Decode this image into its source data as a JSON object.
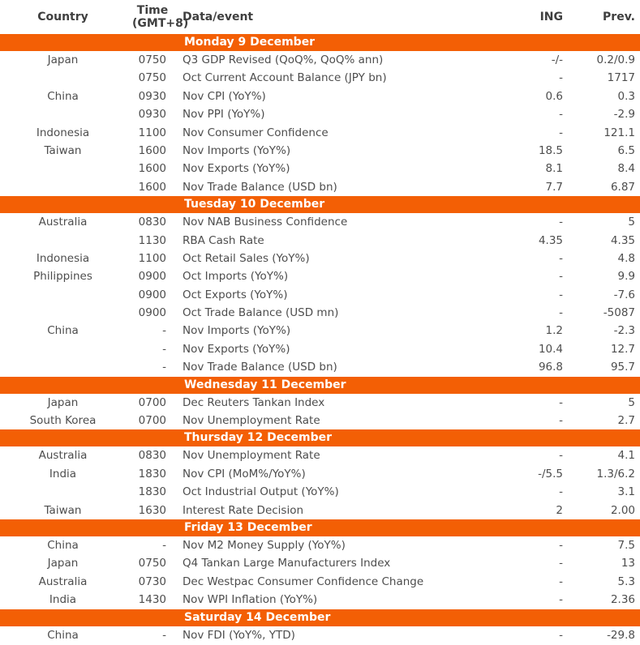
{
  "colors": {
    "accent_orange": "#f35f05",
    "band_text": "#ffffff",
    "body_text": "#4d4d4d"
  },
  "header": {
    "country": "Country",
    "time_line1": "Time",
    "time_line2": "(GMT+8)",
    "event": "Data/event",
    "ing": "ING",
    "prev": "Prev."
  },
  "sections": [
    {
      "day": "Monday 9 December",
      "rows": [
        {
          "country": "Japan",
          "time": "0750",
          "event": "Q3 GDP Revised (QoQ%, QoQ% ann)",
          "ing": "-/-",
          "prev": "0.2/0.9"
        },
        {
          "country": "",
          "time": "0750",
          "event": "Oct Current Account Balance (JPY bn)",
          "ing": "-",
          "prev": "1717"
        },
        {
          "country": "China",
          "time": "0930",
          "event": "Nov CPI (YoY%)",
          "ing": "0.6",
          "prev": "0.3"
        },
        {
          "country": "",
          "time": "0930",
          "event": "Nov PPI (YoY%)",
          "ing": "-",
          "prev": "-2.9"
        },
        {
          "country": "Indonesia",
          "time": "1100",
          "event": "Nov Consumer Confidence",
          "ing": "-",
          "prev": "121.1"
        },
        {
          "country": "Taiwan",
          "time": "1600",
          "event": "Nov Imports (YoY%)",
          "ing": "18.5",
          "prev": "6.5"
        },
        {
          "country": "",
          "time": "1600",
          "event": "Nov Exports (YoY%)",
          "ing": "8.1",
          "prev": "8.4"
        },
        {
          "country": "",
          "time": "1600",
          "event": "Nov Trade Balance (USD bn)",
          "ing": "7.7",
          "prev": "6.87"
        }
      ]
    },
    {
      "day": "Tuesday 10 December",
      "rows": [
        {
          "country": "Australia",
          "time": "0830",
          "event": "Nov NAB Business Confidence",
          "ing": "-",
          "prev": "5"
        },
        {
          "country": "",
          "time": "1130",
          "event": "RBA Cash Rate",
          "ing": "4.35",
          "prev": "4.35"
        },
        {
          "country": "Indonesia",
          "time": "1100",
          "event": "Oct Retail Sales (YoY%)",
          "ing": "-",
          "prev": "4.8"
        },
        {
          "country": "Philippines",
          "time": "0900",
          "event": "Oct Imports (YoY%)",
          "ing": "-",
          "prev": "9.9"
        },
        {
          "country": "",
          "time": "0900",
          "event": "Oct Exports (YoY%)",
          "ing": "-",
          "prev": "-7.6"
        },
        {
          "country": "",
          "time": "0900",
          "event": "Oct Trade Balance (USD mn)",
          "ing": "-",
          "prev": "-5087"
        },
        {
          "country": "China",
          "time": "-",
          "event": "Nov Imports (YoY%)",
          "ing": "1.2",
          "prev": "-2.3"
        },
        {
          "country": "",
          "time": "-",
          "event": "Nov Exports (YoY%)",
          "ing": "10.4",
          "prev": "12.7"
        },
        {
          "country": "",
          "time": "-",
          "event": "Nov Trade Balance (USD bn)",
          "ing": "96.8",
          "prev": "95.7"
        }
      ]
    },
    {
      "day": "Wednesday 11 December",
      "rows": [
        {
          "country": "Japan",
          "time": "0700",
          "event": "Dec Reuters Tankan Index",
          "ing": "-",
          "prev": "5"
        },
        {
          "country": "South Korea",
          "time": "0700",
          "event": "Nov Unemployment Rate",
          "ing": "-",
          "prev": "2.7"
        }
      ]
    },
    {
      "day": "Thursday 12 December",
      "rows": [
        {
          "country": "Australia",
          "time": "0830",
          "event": "Nov Unemployment Rate",
          "ing": "-",
          "prev": "4.1"
        },
        {
          "country": "India",
          "time": "1830",
          "event": "Nov CPI (MoM%/YoY%)",
          "ing": "-/5.5",
          "prev": "1.3/6.2"
        },
        {
          "country": "",
          "time": "1830",
          "event": "Oct Industrial Output (YoY%)",
          "ing": "-",
          "prev": "3.1"
        },
        {
          "country": "Taiwan",
          "time": "1630",
          "event": "Interest Rate Decision",
          "ing": "2",
          "prev": "2.00"
        }
      ]
    },
    {
      "day": "Friday 13 December",
      "rows": [
        {
          "country": "China",
          "time": "-",
          "event": "Nov M2 Money Supply (YoY%)",
          "ing": "-",
          "prev": "7.5"
        },
        {
          "country": "Japan",
          "time": "0750",
          "event": "Q4 Tankan Large Manufacturers Index",
          "ing": "-",
          "prev": "13"
        },
        {
          "country": "Australia",
          "time": "0730",
          "event": "Dec Westpac Consumer Confidence Change",
          "ing": "-",
          "prev": "5.3"
        },
        {
          "country": "India",
          "time": "1430",
          "event": "Nov WPI Inflation (YoY%)",
          "ing": "-",
          "prev": "2.36"
        }
      ]
    },
    {
      "day": "Saturday 14 December",
      "rows": [
        {
          "country": "China",
          "time": "-",
          "event": "Nov FDI (YoY%, YTD)",
          "ing": "-",
          "prev": "-29.8"
        }
      ]
    }
  ]
}
